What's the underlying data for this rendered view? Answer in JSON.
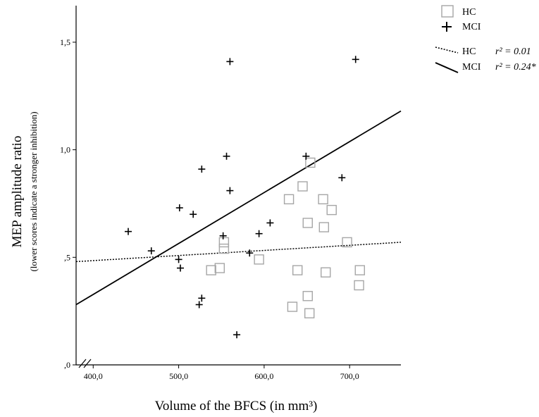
{
  "chart_data": {
    "type": "scatter",
    "xlabel": "Volume  of the BFCS  (in mm³)",
    "ylabel": "MEP amplitude ratio",
    "ylabel_sub": "(lower  scores indicate  a stronger  inhibition)",
    "xlim": [
      380,
      760
    ],
    "ylim": [
      0,
      1.67
    ],
    "x_ticks": [
      {
        "value": 400,
        "label": "400,0"
      },
      {
        "value": 500,
        "label": "500,0"
      },
      {
        "value": 600,
        "label": "600,0"
      },
      {
        "value": 700,
        "label": "700,0"
      }
    ],
    "y_ticks": [
      {
        "value": 0,
        "label": ",0"
      },
      {
        "value": 0.5,
        "label": ",5"
      },
      {
        "value": 1.0,
        "label": "1,0"
      },
      {
        "value": 1.5,
        "label": "1,5"
      }
    ],
    "axis_break": "x",
    "grid": false,
    "legend_position": "top-right",
    "series": [
      {
        "name": "HC",
        "marker": "square",
        "color": "#a6a6a6",
        "points": [
          [
            538,
            0.44
          ],
          [
            548,
            0.45
          ],
          [
            553,
            0.54
          ],
          [
            553,
            0.57
          ],
          [
            594,
            0.49
          ],
          [
            629,
            0.77
          ],
          [
            633,
            0.27
          ],
          [
            639,
            0.44
          ],
          [
            645,
            0.83
          ],
          [
            651,
            0.66
          ],
          [
            651,
            0.32
          ],
          [
            653,
            0.24
          ],
          [
            654,
            0.94
          ],
          [
            669,
            0.77
          ],
          [
            670,
            0.64
          ],
          [
            672,
            0.43
          ],
          [
            679,
            0.72
          ],
          [
            697,
            0.57
          ],
          [
            711,
            0.37
          ],
          [
            712,
            0.44
          ]
        ]
      },
      {
        "name": "MCI",
        "marker": "plus",
        "color": "#000000",
        "points": [
          [
            441,
            0.62
          ],
          [
            468,
            0.53
          ],
          [
            500,
            0.49
          ],
          [
            501,
            0.73
          ],
          [
            502,
            0.45
          ],
          [
            517,
            0.7
          ],
          [
            524,
            0.28
          ],
          [
            527,
            0.91
          ],
          [
            527,
            0.31
          ],
          [
            552,
            0.6
          ],
          [
            556,
            0.97
          ],
          [
            560,
            1.41
          ],
          [
            560,
            0.81
          ],
          [
            583,
            0.52
          ],
          [
            568,
            0.14
          ],
          [
            594,
            0.61
          ],
          [
            607,
            0.66
          ],
          [
            649,
            0.97
          ],
          [
            691,
            0.87
          ],
          [
            707,
            1.42
          ]
        ]
      }
    ],
    "fits": [
      {
        "name": "HC",
        "style": "dotted",
        "r2_label": "r² = 0.01",
        "x": [
          380,
          760
        ],
        "y": [
          0.48,
          0.57
        ]
      },
      {
        "name": "MCI",
        "style": "solid",
        "r2_label": "r² = 0.24*",
        "x": [
          380,
          760
        ],
        "y": [
          0.28,
          1.18
        ]
      }
    ]
  }
}
